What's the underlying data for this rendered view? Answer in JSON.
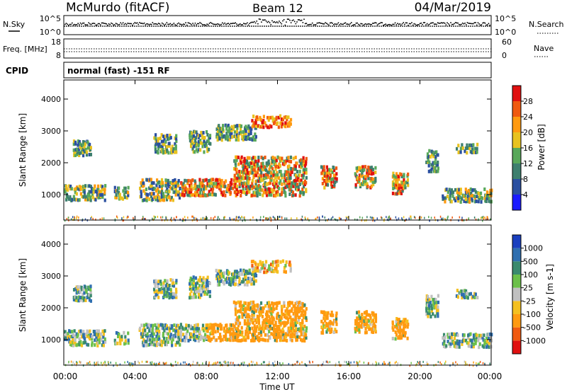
{
  "header": {
    "station": "McMurdo (fitACF)",
    "beam": "Beam 12",
    "date": "04/Mar/2019"
  },
  "colors": {
    "power_scale": [
      "#1a1aff",
      "#2a4fa0",
      "#3d7f6e",
      "#58a85a",
      "#e8c21f",
      "#ff9a10",
      "#f05a10",
      "#e01010"
    ],
    "velocity_scale": [
      "#1a3fbf",
      "#2f6fb0",
      "#3a8a6e",
      "#6cc04a",
      "#c0c0c0",
      "#f4c020",
      "#ff9a10",
      "#f05a10",
      "#e01010"
    ]
  },
  "chart_data": [
    {
      "type": "line",
      "panel": "sky-noise / search-noise",
      "left_label": "N.Sky",
      "right_label": "N.Search",
      "left_ticks": [
        "10^5",
        "10^0"
      ],
      "right_ticks": [
        "10^5",
        "10^0"
      ],
      "note": "dense black dotted trace near 10^3 for whole day"
    },
    {
      "type": "line",
      "panel": "frequency / nave",
      "left_label": "Freq. [MHz]",
      "right_label": "Nave",
      "left_ticks": [
        "18",
        "8"
      ],
      "right_ticks": [
        "60",
        "0"
      ],
      "note": "two constant dotted lines"
    },
    {
      "type": "table",
      "panel": "cpid",
      "label": "CPID",
      "value": "normal (fast) -151 RF"
    },
    {
      "type": "heatmap",
      "panel": "power",
      "ylabel": "Slant Range [km]",
      "yticks": [
        1000,
        2000,
        3000,
        4000
      ],
      "ylim": [
        200,
        4600
      ],
      "colorbar_label": "Power [dB]",
      "colorbar_ticks": [
        "4",
        "8",
        "12",
        "16",
        "20",
        "24",
        "28"
      ]
    },
    {
      "type": "heatmap",
      "panel": "velocity",
      "ylabel": "Slant Range [km]",
      "yticks": [
        1000,
        2000,
        3000,
        4000
      ],
      "ylim": [
        200,
        4600
      ],
      "colorbar_label": "Velocity [m s-1]",
      "colorbar_ticks": [
        "1000",
        "500",
        "100",
        "25",
        "-25",
        "-100",
        "-500",
        "-1000"
      ]
    }
  ],
  "xaxis": {
    "label": "Time UT",
    "ticks": [
      "00:00",
      "04:00",
      "08:00",
      "12:00",
      "16:00",
      "20:00",
      "00:00"
    ]
  }
}
